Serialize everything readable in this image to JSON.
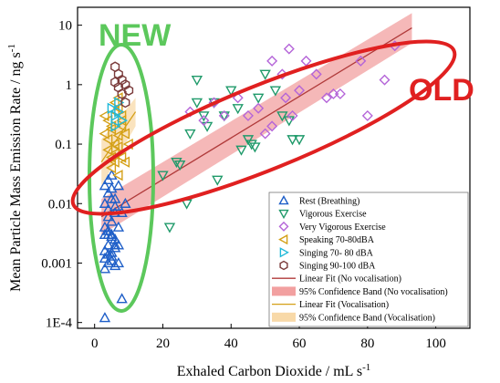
{
  "chart_data": {
    "type": "scatter",
    "xlabel": "Exhaled Carbon Dioxide / mL s",
    "xlabel_sup": "-1",
    "ylabel": "Mean Particle Mass Emission Rate / ng s",
    "ylabel_sup": "-1",
    "xlim": [
      -5,
      110
    ],
    "ylim": [
      8e-05,
      20
    ],
    "yscale": "log",
    "x_ticks": [
      0,
      20,
      40,
      60,
      80,
      100
    ],
    "x_tick_labels": [
      "0",
      "20",
      "40",
      "60",
      "80",
      "100"
    ],
    "y_ticks": [
      10,
      1,
      0.1,
      0.01,
      0.001,
      0.0001
    ],
    "y_tick_labels": [
      "10",
      "1",
      "0.1",
      "0.01",
      "0.001",
      "1E-4"
    ],
    "legend_position": "bottom-right",
    "series": [
      {
        "name": "Rest (Breathing)",
        "marker": "triangle-up",
        "color": "#1f5fc8",
        "x": [
          3,
          4,
          5,
          6,
          7,
          3,
          4,
          5,
          6,
          8,
          4,
          5,
          6,
          7,
          9,
          3,
          4,
          5,
          6,
          7,
          4,
          5,
          6,
          3,
          4,
          5,
          6,
          7,
          3,
          4,
          5,
          3,
          4,
          5,
          6,
          4,
          5,
          3,
          8,
          3
        ],
        "y": [
          0.02,
          0.015,
          0.018,
          0.012,
          0.02,
          0.01,
          0.008,
          0.012,
          0.009,
          0.007,
          0.006,
          0.005,
          0.007,
          0.004,
          0.01,
          0.004,
          0.003,
          0.003,
          0.0025,
          0.002,
          0.002,
          0.0015,
          0.0018,
          0.0012,
          0.001,
          0.0013,
          0.0009,
          0.001,
          0.003,
          0.0035,
          0.0028,
          0.0016,
          0.0014,
          0.0011,
          0.002,
          0.025,
          0.03,
          0.0008,
          0.00025,
          0.00012
        ]
      },
      {
        "name": "Vigorous Exercise",
        "marker": "triangle-down",
        "color": "#1f9a6a",
        "x": [
          20,
          22,
          24,
          25,
          27,
          28,
          30,
          32,
          33,
          35,
          36,
          38,
          40,
          42,
          45,
          46,
          48,
          50,
          53,
          55,
          57,
          58,
          60,
          30,
          43,
          47
        ],
        "y": [
          0.03,
          0.004,
          0.05,
          0.045,
          0.01,
          0.15,
          1.2,
          0.3,
          0.2,
          0.5,
          0.025,
          0.3,
          0.8,
          0.4,
          0.12,
          0.1,
          0.6,
          1.5,
          0.8,
          0.3,
          0.25,
          0.12,
          0.12,
          0.5,
          0.08,
          0.09
        ]
      },
      {
        "name": "Very Vigorous Exercise",
        "marker": "diamond",
        "color": "#b464d8",
        "x": [
          28,
          32,
          35,
          38,
          42,
          45,
          48,
          50,
          52,
          55,
          57,
          58,
          60,
          62,
          65,
          68,
          70,
          72,
          78,
          80,
          85,
          88,
          52,
          56
        ],
        "y": [
          0.35,
          0.25,
          0.5,
          0.3,
          0.6,
          0.3,
          0.4,
          0.15,
          2.5,
          1.5,
          4,
          0.3,
          0.8,
          2.5,
          1.5,
          0.6,
          0.7,
          0.7,
          2.5,
          0.3,
          1.2,
          4.5,
          0.2,
          0.6
        ]
      },
      {
        "name": "Speaking 70-80dBA",
        "marker": "triangle-left",
        "color": "#d4a017",
        "x": [
          3,
          4,
          5,
          6,
          7,
          8,
          3,
          4,
          5,
          6,
          7,
          8,
          9,
          4,
          5,
          6,
          7,
          5,
          6,
          7,
          8,
          9,
          10,
          6,
          7,
          8
        ],
        "y": [
          0.3,
          0.25,
          0.2,
          0.35,
          0.4,
          0.25,
          0.15,
          0.12,
          0.18,
          0.1,
          0.14,
          0.2,
          0.15,
          0.08,
          0.06,
          0.07,
          0.09,
          0.04,
          0.05,
          0.03,
          0.06,
          0.05,
          0.1,
          0.5,
          0.6,
          0.3
        ]
      },
      {
        "name": "Singing 70- 80 dBA",
        "marker": "triangle-right",
        "color": "#1eb8d8",
        "x": [
          5,
          6,
          7,
          8,
          6,
          7
        ],
        "y": [
          0.4,
          0.3,
          0.35,
          0.25,
          0.2,
          0.5
        ]
      },
      {
        "name": "Singing 90-100 dBA",
        "marker": "hexagon",
        "color": "#7a3a3a",
        "x": [
          6,
          7,
          8,
          9,
          7,
          8,
          10,
          9,
          6
        ],
        "y": [
          2,
          1.5,
          1.2,
          1,
          0.9,
          0.7,
          0.8,
          0.5,
          1.1
        ]
      }
    ],
    "fits": [
      {
        "name": "Linear Fit (No vocalisation)",
        "color": "#b03a3a",
        "band_color": "#f2a0a0",
        "band_name": "95% Confidence Band (No vocalisation)",
        "x": [
          2,
          93
        ],
        "y": [
          0.006,
          9
        ],
        "band_low": [
          0.003,
          5
        ],
        "band_high": [
          0.012,
          16
        ]
      },
      {
        "name": "Linear Fit (Vocalisation)",
        "color": "#d4a017",
        "band_color": "#f8d9a8",
        "band_name": "95% Confidence Band (Vocalisation)",
        "x": [
          2,
          12
        ],
        "y": [
          0.05,
          0.35
        ],
        "band_low": [
          0.02,
          0.2
        ],
        "band_high": [
          0.12,
          0.6
        ]
      }
    ],
    "annotations": [
      {
        "text": "NEW",
        "color": "#5cc85c"
      },
      {
        "text": "OLD",
        "color": "#e02020"
      }
    ]
  }
}
